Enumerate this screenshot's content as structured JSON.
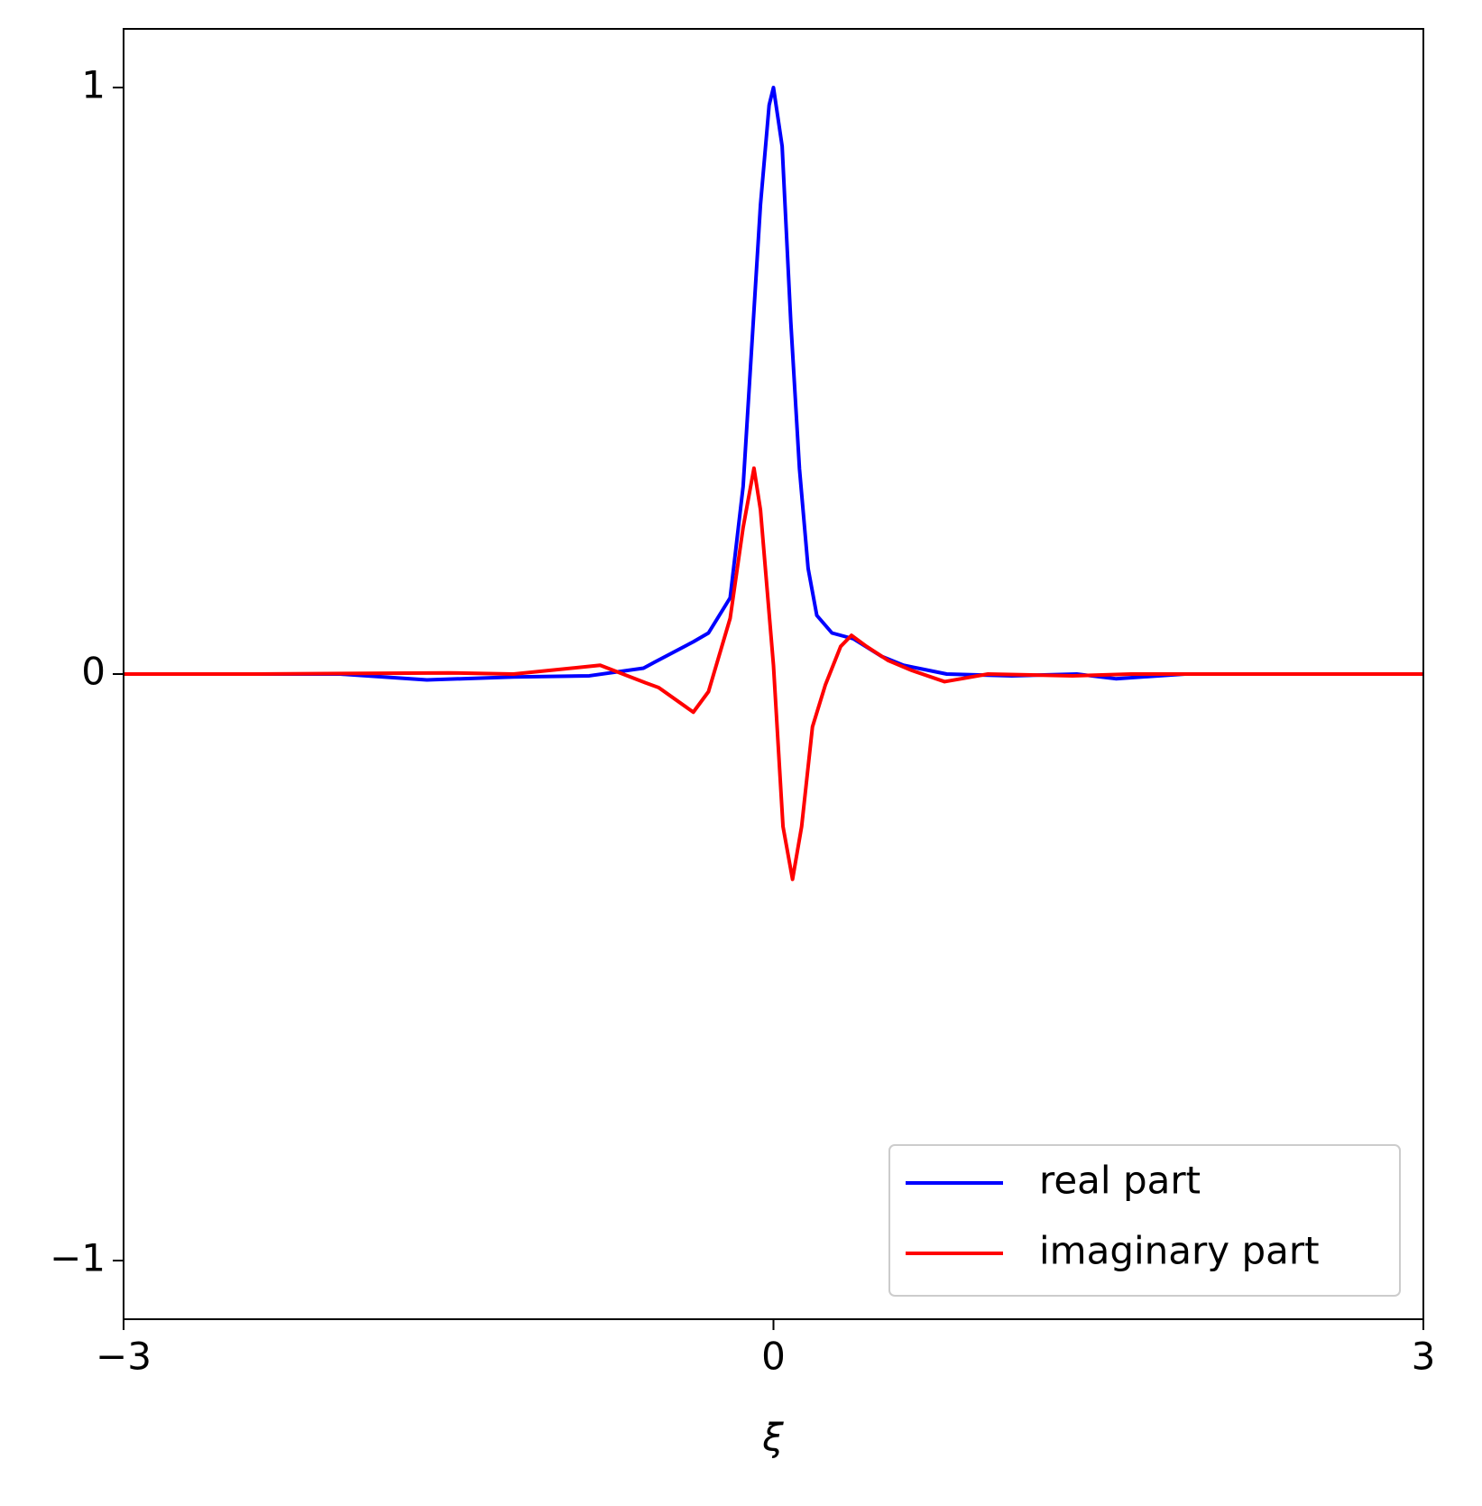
{
  "chart_data": {
    "type": "line",
    "xlabel": "ξ",
    "xlim": [
      -3,
      3
    ],
    "ylim": [
      -1.1,
      1.1
    ],
    "xticks": [
      {
        "value": -3,
        "label": "−3"
      },
      0,
      3
    ],
    "yticks": [
      {
        "value": -1,
        "label": "−1"
      },
      0,
      1
    ],
    "legend": "lower right",
    "series": [
      {
        "name": "real part",
        "color": "#0000ff",
        "x": [
          -3,
          -2,
          -1.6,
          -1.2,
          -0.85,
          -0.6,
          -0.55,
          -0.37,
          -0.3,
          -0.2,
          -0.14,
          -0.11,
          -0.06,
          -0.02,
          0,
          0.04,
          0.08,
          0.12,
          0.16,
          0.2,
          0.27,
          0.37,
          0.5,
          0.6,
          0.8,
          1.1,
          1.4,
          1.58,
          1.9,
          3
        ],
        "values": [
          0,
          0,
          -0.01,
          -0.005,
          -0.003,
          0.01,
          0.02,
          0.055,
          0.07,
          0.13,
          0.32,
          0.5,
          0.8,
          0.97,
          1.0,
          0.9,
          0.6,
          0.35,
          0.18,
          0.1,
          0.07,
          0.06,
          0.03,
          0.015,
          0,
          -0.003,
          0,
          -0.008,
          0,
          0
        ]
      },
      {
        "name": "imaginary part",
        "color": "#ff0000",
        "x": [
          -3,
          -2.4,
          -1.5,
          -1.2,
          -0.8,
          -0.59,
          -0.53,
          -0.37,
          -0.3,
          -0.2,
          -0.14,
          -0.09,
          -0.06,
          0,
          0.044,
          0.088,
          0.13,
          0.18,
          0.24,
          0.31,
          0.36,
          0.43,
          0.53,
          0.64,
          0.79,
          0.99,
          1.38,
          1.65,
          3
        ],
        "values": [
          0,
          0,
          0.002,
          0,
          0.015,
          -0.015,
          -0.023,
          -0.065,
          -0.03,
          0.095,
          0.25,
          0.351,
          0.28,
          0.015,
          -0.26,
          -0.35,
          -0.26,
          -0.09,
          -0.018,
          0.047,
          0.066,
          0.047,
          0.023,
          0.006,
          -0.013,
          0,
          -0.003,
          0,
          0
        ]
      }
    ]
  }
}
